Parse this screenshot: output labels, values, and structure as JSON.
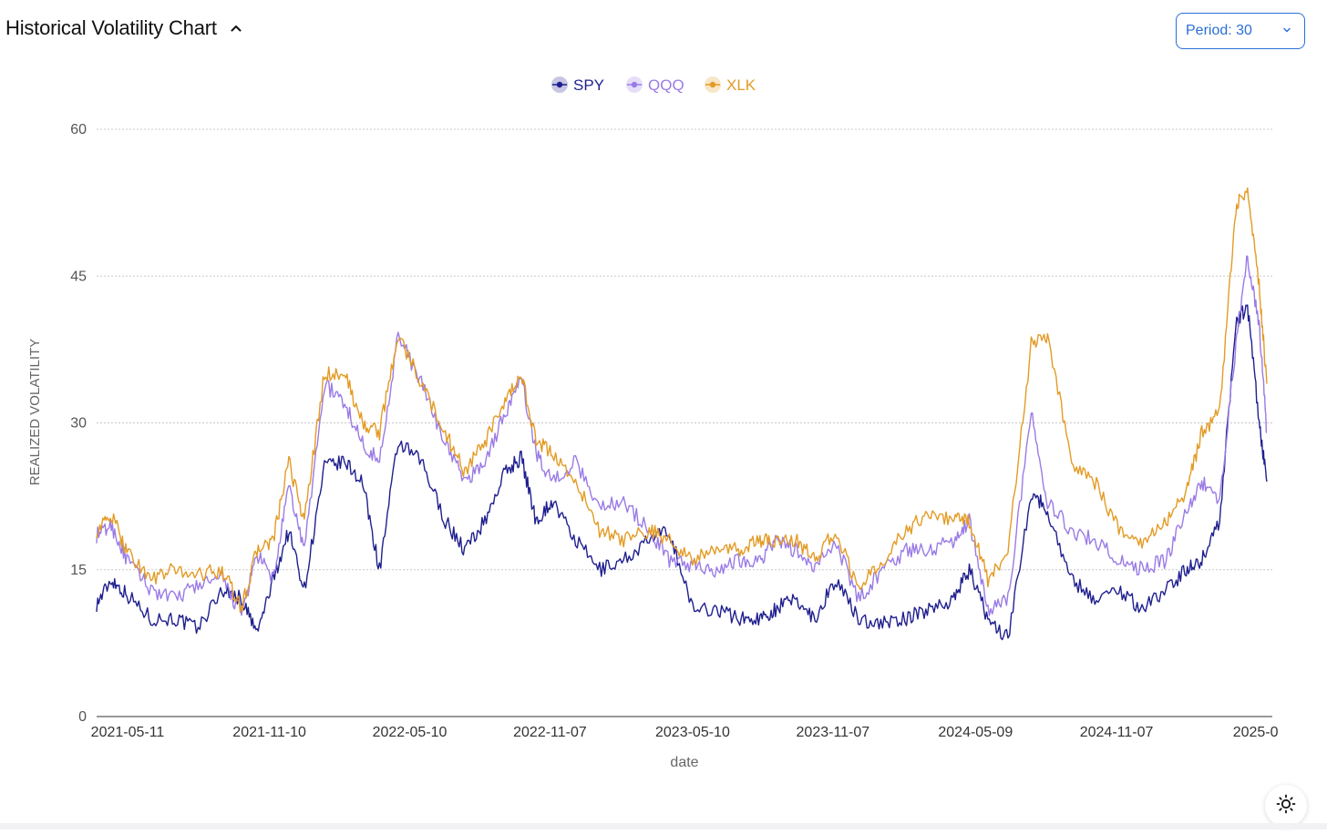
{
  "header": {
    "title": "Historical Volatility Chart",
    "collapse_icon": "chevron-up-icon",
    "period_select": {
      "value": "Period: 30",
      "icon": "chevron-down-icon"
    }
  },
  "theme_toggle": {
    "icon": "sun-icon"
  },
  "colors": {
    "SPY": "#1f1f8f",
    "QQQ": "#9a7be6",
    "XLK": "#e39b25",
    "accent": "#2a6fd6"
  },
  "chart_data": {
    "type": "line",
    "xlabel": "date",
    "ylabel": "REALIZED VOLATILITY",
    "ylim": [
      0,
      60
    ],
    "yticks": [
      "0",
      "15",
      "30",
      "45",
      "60"
    ],
    "xticks": [
      "2021-05-11",
      "2021-11-10",
      "2022-05-10",
      "2022-11-07",
      "2023-05-10",
      "2023-11-07",
      "2024-05-09",
      "2024-11-07",
      "2025-0"
    ],
    "grid": "horizontal dotted",
    "legend": "top-center",
    "x": [
      "2021-04-01",
      "2021-04-20",
      "2021-05-10",
      "2021-06-10",
      "2021-07-10",
      "2021-08-10",
      "2021-09-10",
      "2021-10-05",
      "2021-10-25",
      "2021-11-15",
      "2021-12-05",
      "2021-12-25",
      "2022-01-20",
      "2022-02-15",
      "2022-03-10",
      "2022-04-01",
      "2022-04-25",
      "2022-05-25",
      "2022-06-25",
      "2022-07-20",
      "2022-08-15",
      "2022-09-10",
      "2022-10-01",
      "2022-10-20",
      "2022-11-10",
      "2022-12-10",
      "2023-01-10",
      "2023-02-10",
      "2023-03-15",
      "2023-04-10",
      "2023-05-10",
      "2023-06-10",
      "2023-07-10",
      "2023-08-05",
      "2023-08-25",
      "2023-09-20",
      "2023-10-15",
      "2023-11-10",
      "2023-12-10",
      "2024-01-10",
      "2024-02-10",
      "2024-03-10",
      "2024-04-10",
      "2024-05-01",
      "2024-05-25",
      "2024-06-20",
      "2024-07-20",
      "2024-08-10",
      "2024-09-10",
      "2024-10-10",
      "2024-11-10",
      "2024-12-10",
      "2025-01-10",
      "2025-02-05",
      "2025-02-25",
      "2025-03-20",
      "2025-04-10",
      "2025-04-25",
      "2025-05-10",
      "2025-05-20"
    ],
    "series": [
      {
        "name": "SPY",
        "values": [
          11.5,
          14,
          12.5,
          10,
          10,
          9,
          13,
          12,
          8.5,
          14,
          19,
          13,
          25.5,
          26,
          24,
          15,
          28,
          26,
          20,
          17,
          20,
          25,
          26.5,
          20,
          22,
          18,
          15,
          16,
          18,
          19,
          11,
          11,
          10,
          10,
          11,
          12,
          10,
          14,
          10,
          9.5,
          10,
          11,
          12,
          15,
          10,
          8,
          23,
          21,
          14,
          12,
          13,
          11,
          13,
          15,
          16,
          20,
          40,
          42,
          30,
          24
        ]
      },
      {
        "name": "QQQ",
        "values": [
          18.5,
          19.5,
          16,
          13,
          12,
          13.5,
          14,
          10.5,
          16.5,
          14,
          23.5,
          17,
          34,
          32,
          28,
          26,
          39,
          34,
          28,
          24,
          26,
          31,
          34.5,
          27,
          24,
          26,
          21.5,
          22,
          19,
          16,
          15.5,
          15,
          16,
          16,
          18,
          17,
          15,
          18,
          12,
          15,
          17,
          17,
          18,
          20,
          11,
          12,
          31,
          22,
          19,
          18,
          16,
          15,
          16,
          21,
          24,
          22,
          38,
          47,
          40,
          29
        ]
      },
      {
        "name": "XLK",
        "values": [
          19,
          20.5,
          17,
          14,
          15,
          14.5,
          15,
          11,
          17,
          18,
          26,
          20,
          35,
          35,
          30,
          29,
          39,
          34,
          29,
          25,
          28,
          32,
          35,
          28,
          27,
          24,
          19,
          18,
          19,
          18,
          16,
          17,
          17,
          18,
          18,
          18,
          16,
          19,
          13,
          16,
          19,
          21,
          20,
          20,
          14,
          17,
          38,
          39,
          26,
          24,
          19,
          18,
          20,
          23,
          29,
          31,
          52,
          54,
          44,
          34
        ]
      }
    ]
  }
}
